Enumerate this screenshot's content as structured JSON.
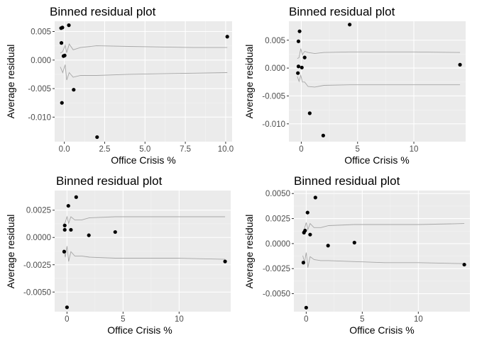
{
  "colors": {
    "panel_background": "#ebebeb",
    "grid_major": "#ffffff",
    "grid_minor": "#f4f4f4",
    "tick_color": "#333333",
    "point_color": "#000000",
    "band_color": "#a6a6a6"
  },
  "chart_data": [
    {
      "type": "scatter",
      "title": "Binned residual plot",
      "xlabel": "Office Crisis %",
      "ylabel": "Average residual",
      "xlim": [
        -0.6,
        10.4
      ],
      "ylim": [
        -0.0143,
        0.0068
      ],
      "xticks": [
        0,
        2.5,
        5,
        7.5,
        10
      ],
      "xtick_labels": [
        "0.0",
        "2.5",
        "5.0",
        "7.5",
        "10.0"
      ],
      "yticks": [
        0.005,
        0,
        -0.005,
        -0.01
      ],
      "ytick_labels": [
        "0.005",
        "0.000",
        "-0.005",
        "-0.010"
      ],
      "grid": true,
      "points": {
        "x": [
          -0.2,
          -0.12,
          -0.18,
          -0.05,
          0.28,
          0.02,
          -0.15,
          0.58,
          2.03,
          10.1
        ],
        "y": [
          0.0056,
          0.0057,
          0.003,
          0.0007,
          0.0061,
          0.0008,
          -0.0075,
          -0.0052,
          -0.0135,
          0.0041
        ]
      },
      "band_upper": {
        "x": [
          -0.25,
          -0.1,
          0.05,
          0.15,
          0.3,
          0.55,
          1.0,
          2.0,
          4.0,
          6.0,
          8.0,
          10.1
        ],
        "y": [
          0.0012,
          0.0015,
          0.0026,
          0.0013,
          0.0028,
          0.0018,
          0.0022,
          0.0025,
          0.0024,
          0.0023,
          0.0022,
          0.0022
        ]
      },
      "band_lower": {
        "x": [
          -0.25,
          -0.1,
          0.05,
          0.15,
          0.3,
          0.55,
          1.0,
          2.0,
          4.0,
          6.0,
          8.0,
          10.1
        ],
        "y": [
          -0.0012,
          -0.0022,
          -0.0008,
          -0.0035,
          -0.0022,
          -0.003,
          -0.0027,
          -0.0027,
          -0.0025,
          -0.0024,
          -0.0023,
          -0.0022
        ]
      }
    },
    {
      "type": "scatter",
      "title": "Binned residual plot",
      "xlabel": "Office Crisis %",
      "ylabel": "Average residual",
      "xlim": [
        -1.1,
        14.6
      ],
      "ylim": [
        -0.0132,
        0.0084
      ],
      "xticks": [
        0,
        5,
        10
      ],
      "xtick_labels": [
        "0",
        "5",
        "10"
      ],
      "yticks": [
        0.005,
        0,
        -0.005,
        -0.01
      ],
      "ytick_labels": [
        "0.005",
        "0.000",
        "-0.005",
        "-0.010"
      ],
      "grid": true,
      "points": {
        "x": [
          -0.25,
          -0.15,
          -0.25,
          0.05,
          0.3,
          -0.3,
          0.75,
          1.95,
          4.3,
          14.1
        ],
        "y": [
          0.0048,
          0.0066,
          0.0003,
          0.0001,
          0.0019,
          -0.0009,
          -0.0081,
          -0.0121,
          0.0078,
          0.0006
        ]
      },
      "band_upper": {
        "x": [
          -0.35,
          -0.2,
          -0.05,
          0.1,
          0.3,
          0.6,
          1.2,
          2.0,
          4.3,
          7.0,
          10.0,
          14.1
        ],
        "y": [
          0.0017,
          0.0019,
          0.0035,
          0.0024,
          0.003,
          0.0028,
          0.0026,
          0.0028,
          0.0029,
          0.0029,
          0.0029,
          0.0028
        ]
      },
      "band_lower": {
        "x": [
          -0.35,
          -0.2,
          -0.05,
          0.1,
          0.3,
          0.6,
          1.2,
          2.0,
          4.3,
          7.0,
          10.0,
          14.1
        ],
        "y": [
          -0.0015,
          -0.0024,
          -0.0013,
          -0.0025,
          -0.0025,
          -0.0033,
          -0.0034,
          -0.0031,
          -0.003,
          -0.003,
          -0.003,
          -0.003
        ]
      }
    },
    {
      "type": "scatter",
      "title": "Binned residual plot",
      "xlabel": "Office Crisis %",
      "ylabel": "Average residual",
      "xlim": [
        -1.1,
        14.6
      ],
      "ylim": [
        -0.0068,
        0.0043
      ],
      "xticks": [
        0,
        5,
        10
      ],
      "xtick_labels": [
        "0",
        "5",
        "10"
      ],
      "yticks": [
        0.0025,
        0,
        -0.0025,
        -0.005
      ],
      "ytick_labels": [
        "0.0025",
        "0.0000",
        "-0.0025",
        "-0.0050"
      ],
      "grid": true,
      "points": {
        "x": [
          -0.2,
          -0.2,
          0.12,
          0.35,
          0.82,
          -0.25,
          0.0,
          1.95,
          4.3,
          14.1
        ],
        "y": [
          0.0011,
          0.0007,
          0.0029,
          0.0007,
          0.0037,
          -0.0013,
          -0.0064,
          0.0002,
          0.0005,
          -0.0022
        ]
      },
      "band_upper": {
        "x": [
          -0.3,
          -0.15,
          0.0,
          0.15,
          0.35,
          0.7,
          1.3,
          2.0,
          4.3,
          7.0,
          10.0,
          14.1
        ],
        "y": [
          0.0012,
          0.0014,
          0.0019,
          0.0013,
          0.0019,
          0.0016,
          0.0016,
          0.0018,
          0.0019,
          0.0019,
          0.0019,
          0.0019
        ]
      },
      "band_lower": {
        "x": [
          -0.3,
          -0.15,
          0.0,
          0.15,
          0.35,
          0.7,
          1.3,
          2.0,
          4.3,
          7.0,
          10.0,
          14.1
        ],
        "y": [
          -0.0011,
          -0.0018,
          -0.0008,
          -0.0022,
          -0.0013,
          -0.0017,
          -0.0017,
          -0.0018,
          -0.0019,
          -0.0019,
          -0.0019,
          -0.002
        ]
      }
    },
    {
      "type": "scatter",
      "title": "Binned residual plot",
      "xlabel": "Office Crisis %",
      "ylabel": "Average residual",
      "xlim": [
        -1.1,
        14.6
      ],
      "ylim": [
        -0.0068,
        0.0053
      ],
      "xticks": [
        0,
        5,
        10
      ],
      "xtick_labels": [
        "0",
        "5",
        "10"
      ],
      "yticks": [
        0.005,
        0.0025,
        0,
        -0.0025,
        -0.005
      ],
      "ytick_labels": [
        "0.0050",
        "0.0025",
        "0.0000",
        "-0.0025",
        "-0.0050"
      ],
      "grid": true,
      "points": {
        "x": [
          -0.2,
          -0.1,
          0.12,
          0.35,
          0.82,
          -0.25,
          0.0,
          1.95,
          4.3,
          14.1
        ],
        "y": [
          0.0011,
          0.0013,
          0.0031,
          0.0009,
          0.0046,
          -0.0019,
          -0.0064,
          -0.0002,
          0.0001,
          -0.0021
        ]
      },
      "band_upper": {
        "x": [
          -0.3,
          -0.15,
          0.0,
          0.15,
          0.35,
          0.7,
          1.3,
          2.0,
          4.3,
          7.0,
          10.0,
          14.1
        ],
        "y": [
          0.0012,
          0.0015,
          0.0021,
          0.0014,
          0.002,
          0.0016,
          0.0016,
          0.0018,
          0.0019,
          0.0019,
          0.0019,
          0.002
        ]
      },
      "band_lower": {
        "x": [
          -0.3,
          -0.15,
          0.0,
          0.15,
          0.35,
          0.7,
          1.3,
          2.0,
          4.3,
          7.0,
          10.0,
          14.1
        ],
        "y": [
          -0.0012,
          -0.0019,
          -0.0009,
          -0.0024,
          -0.0013,
          -0.0016,
          -0.0017,
          -0.0017,
          -0.0018,
          -0.0019,
          -0.0019,
          -0.002
        ]
      }
    }
  ]
}
